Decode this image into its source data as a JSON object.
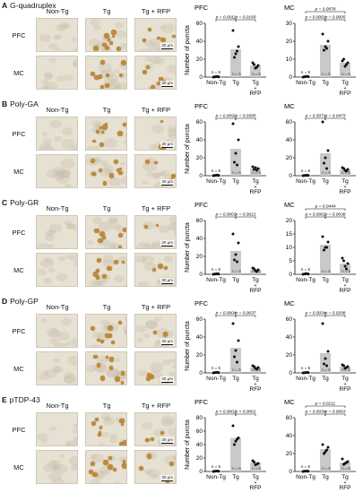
{
  "columns": [
    "Non-Tg",
    "Tg",
    "Tg + RFP"
  ],
  "rows": [
    "PFC",
    "MC"
  ],
  "scale_bar": "30 μm",
  "ylabel": "Number of puncta",
  "n_label": "n = 5",
  "colors": {
    "bar": "#c9c9c9",
    "dot": "#111111",
    "micro_bg": "#e6e1d2",
    "stain": "#c08a3a"
  },
  "panels": [
    {
      "letter": "A",
      "name": "G-quadruplex",
      "micro_density": [
        0,
        9,
        5
      ],
      "charts": [
        {
          "region": "PFC",
          "ylim": [
            0,
            60
          ],
          "yticks": [
            0,
            20,
            40,
            60
          ],
          "categories": [
            "Non-Tg",
            "Tg",
            "Tg + RFP"
          ],
          "bars": [
            0.4,
            31,
            13
          ],
          "points": [
            [
              0,
              0.3,
              0.5,
              0.2,
              0.6
            ],
            [
              52,
              34,
              26,
              22,
              29
            ],
            [
              16,
              13,
              10,
              14,
              11
            ]
          ],
          "p_values": [
            {
              "from": 0,
              "to": 1,
              "text": "p = 0.0011"
            },
            {
              "from": 1,
              "to": 2,
              "text": "p = 0.0169"
            }
          ]
        },
        {
          "region": "MC",
          "ylim": [
            0,
            30
          ],
          "yticks": [
            0,
            10,
            20,
            30
          ],
          "categories": [
            "Non-Tg",
            "Tg",
            "Tg + RFP"
          ],
          "bars": [
            0.2,
            18,
            8
          ],
          "points": [
            [
              0,
              0.2,
              0.3,
              0.1,
              0.4
            ],
            [
              24,
              20,
              17,
              15,
              16
            ],
            [
              9,
              8,
              6,
              10,
              7
            ]
          ],
          "p_values": [
            {
              "from": 0,
              "to": 2,
              "text": "p = 0.0978",
              "level": 2
            },
            {
              "from": 0,
              "to": 1,
              "text": "p = 0.0001"
            },
            {
              "from": 1,
              "to": 2,
              "text": "p = 0.0005"
            }
          ]
        }
      ]
    },
    {
      "letter": "B",
      "name": "Poly-GA",
      "micro_density": [
        0,
        9,
        3
      ],
      "charts": [
        {
          "region": "PFC",
          "ylim": [
            0,
            60
          ],
          "yticks": [
            0,
            20,
            40,
            60
          ],
          "categories": [
            "Non-Tg",
            "Tg",
            "Tg + RFP"
          ],
          "bars": [
            0.4,
            30,
            8
          ],
          "points": [
            [
              0,
              0.3,
              0.5,
              0.2,
              0.6
            ],
            [
              58,
              40,
              25,
              15,
              12
            ],
            [
              10,
              8,
              9,
              7,
              6
            ]
          ],
          "p_values": [
            {
              "from": 0,
              "to": 1,
              "text": "p = 0.0092"
            },
            {
              "from": 1,
              "to": 2,
              "text": "p = 0.0395"
            }
          ]
        },
        {
          "region": "MC",
          "ylim": [
            0,
            60
          ],
          "yticks": [
            0,
            20,
            40,
            60
          ],
          "categories": [
            "Non-Tg",
            "Tg",
            "Tg + RFP"
          ],
          "bars": [
            0.3,
            25,
            7
          ],
          "points": [
            [
              0,
              0.3,
              0.4,
              0.2,
              0.5
            ],
            [
              60,
              28,
              20,
              14,
              8
            ],
            [
              9,
              7,
              6,
              8,
              5
            ]
          ],
          "p_values": [
            {
              "from": 0,
              "to": 1,
              "text": "p = 0.0071"
            },
            {
              "from": 1,
              "to": 2,
              "text": "p = 0.0473"
            }
          ]
        }
      ]
    },
    {
      "letter": "C",
      "name": "Poly-GR",
      "micro_density": [
        0,
        7,
        2
      ],
      "charts": [
        {
          "region": "PFC",
          "ylim": [
            0,
            60
          ],
          "yticks": [
            0,
            20,
            40,
            60
          ],
          "categories": [
            "Non-Tg",
            "Tg",
            "Tg + RFP"
          ],
          "bars": [
            0.4,
            26,
            5
          ],
          "points": [
            [
              0,
              0.3,
              0.4,
              0.2,
              0.6
            ],
            [
              45,
              35,
              22,
              16,
              14
            ],
            [
              7,
              5,
              4,
              6,
              3
            ]
          ],
          "p_values": [
            {
              "from": 0,
              "to": 1,
              "text": "p = 0.0003"
            },
            {
              "from": 1,
              "to": 2,
              "text": "p = 0.0021"
            }
          ]
        },
        {
          "region": "MC",
          "ylim": [
            0,
            20
          ],
          "yticks": [
            0,
            5,
            10,
            15,
            20
          ],
          "categories": [
            "Non-Tg",
            "Tg",
            "Tg + RFP"
          ],
          "bars": [
            0.1,
            11,
            4
          ],
          "points": [
            [
              0,
              0.1,
              0.2,
              0.1,
              0.2
            ],
            [
              14,
              12,
              10,
              9,
              10
            ],
            [
              6,
              4,
              3,
              5,
              2
            ]
          ],
          "p_values": [
            {
              "from": 0,
              "to": 2,
              "text": "p = 0.0444",
              "level": 2
            },
            {
              "from": 0,
              "to": 1,
              "text": "p < 0.0001"
            },
            {
              "from": 1,
              "to": 2,
              "text": "p = 0.0038"
            }
          ]
        }
      ]
    },
    {
      "letter": "D",
      "name": "Poly-GP",
      "micro_density": [
        0,
        8,
        2
      ],
      "charts": [
        {
          "region": "PFC",
          "ylim": [
            0,
            60
          ],
          "yticks": [
            0,
            20,
            40,
            60
          ],
          "categories": [
            "Non-Tg",
            "Tg",
            "Tg + RFP"
          ],
          "bars": [
            0.4,
            28,
            6
          ],
          "points": [
            [
              0,
              0.3,
              0.5,
              0.2,
              0.6
            ],
            [
              55,
              36,
              25,
              18,
              12
            ],
            [
              8,
              6,
              5,
              7,
              4
            ]
          ],
          "p_values": [
            {
              "from": 0,
              "to": 1,
              "text": "p = 0.0004"
            },
            {
              "from": 1,
              "to": 2,
              "text": "p = 0.0037"
            }
          ]
        },
        {
          "region": "MC",
          "ylim": [
            0,
            60
          ],
          "yticks": [
            0,
            20,
            40,
            60
          ],
          "categories": [
            "Non-Tg",
            "Tg",
            "Tg + RFP"
          ],
          "bars": [
            0.3,
            22,
            7
          ],
          "points": [
            [
              0,
              0.2,
              0.4,
              0.1,
              0.5
            ],
            [
              55,
              24,
              16,
              10,
              8
            ],
            [
              9,
              7,
              5,
              8,
              6
            ]
          ],
          "p_values": [
            {
              "from": 0,
              "to": 1,
              "text": "p = 0.0034"
            },
            {
              "from": 1,
              "to": 2,
              "text": "p = 0.0298"
            }
          ]
        }
      ]
    },
    {
      "letter": "E",
      "name": "pTDP-43",
      "micro_density": [
        0,
        9,
        3
      ],
      "charts": [
        {
          "region": "PFC",
          "ylim": [
            0,
            80
          ],
          "yticks": [
            0,
            20,
            40,
            60,
            80
          ],
          "categories": [
            "Non-Tg",
            "Tg",
            "Tg + RFP"
          ],
          "bars": [
            0.5,
            50,
            13
          ],
          "points": [
            [
              0,
              0.4,
              0.6,
              0.3,
              0.7
            ],
            [
              68,
              50,
              45,
              40,
              48
            ],
            [
              16,
              12,
              10,
              14,
              11
            ]
          ],
          "p_values": [
            {
              "from": 0,
              "to": 1,
              "text": "p < 0.0001"
            },
            {
              "from": 1,
              "to": 2,
              "text": "p < 0.0001"
            }
          ]
        },
        {
          "region": "MC",
          "ylim": [
            0,
            60
          ],
          "yticks": [
            0,
            20,
            40,
            60
          ],
          "categories": [
            "Non-Tg",
            "Tg",
            "Tg + RFP"
          ],
          "bars": [
            0.3,
            25,
            10
          ],
          "points": [
            [
              0,
              0.3,
              0.4,
              0.2,
              0.5
            ],
            [
              30,
              27,
              22,
              20,
              24
            ],
            [
              14,
              11,
              9,
              8,
              10
            ]
          ],
          "p_values": [
            {
              "from": 0,
              "to": 2,
              "text": "p = 0.0211",
              "level": 2
            },
            {
              "from": 0,
              "to": 1,
              "text": "p = 0.0034"
            },
            {
              "from": 1,
              "to": 2,
              "text": "p = 0.0063"
            }
          ]
        }
      ]
    }
  ]
}
